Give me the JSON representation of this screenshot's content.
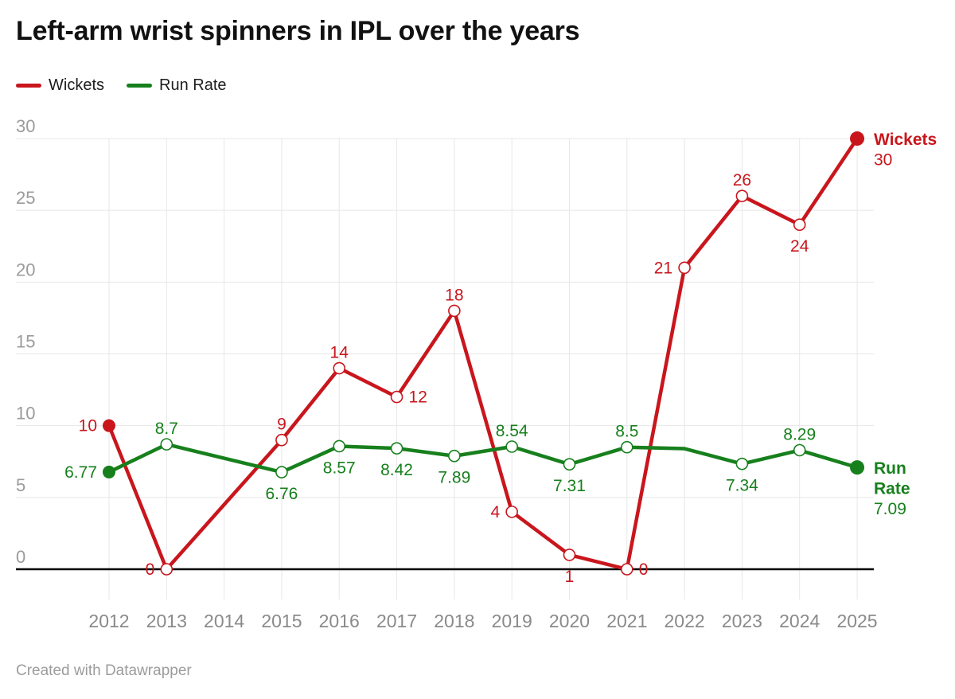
{
  "header": {
    "title": "Left-arm wrist spinners in IPL over the years"
  },
  "legend": {
    "position": "top",
    "items": [
      {
        "label": "Wickets",
        "color": "#c9161d"
      },
      {
        "label": "Run Rate",
        "color": "#17801d"
      }
    ]
  },
  "footer": {
    "text": "Created with Datawrapper"
  },
  "chart_data": {
    "type": "line",
    "title": "Left-arm wrist spinners in IPL over the years",
    "xlabel": "",
    "ylabel": "",
    "x": [
      "2012",
      "2013",
      "2014",
      "2015",
      "2016",
      "2017",
      "2018",
      "2019",
      "2020",
      "2021",
      "2022",
      "2023",
      "2024",
      "2025"
    ],
    "ylim": [
      0,
      30
    ],
    "yticks": [
      0,
      5,
      10,
      15,
      20,
      25,
      30
    ],
    "grid": true,
    "note_missing_year": "2014 has no data points; lines connect 2013 directly to 2015",
    "series": [
      {
        "name": "Wickets",
        "color": "#c9161d",
        "values": [
          10,
          0,
          null,
          9,
          14,
          12,
          18,
          4,
          1,
          0,
          21,
          26,
          24,
          30
        ],
        "labels": [
          "10",
          "0",
          null,
          "9",
          "14",
          "12",
          "18",
          "4",
          "1",
          "0",
          "21",
          "26",
          "24",
          null
        ],
        "label_pos": [
          "left",
          "left",
          null,
          "above",
          "above",
          "right",
          "above",
          "left",
          "below",
          "right",
          "left",
          "above",
          "below",
          null
        ],
        "marker_hidden": [],
        "end_label": {
          "bold_lines": [
            "Wickets"
          ],
          "value": "30"
        }
      },
      {
        "name": "Run Rate",
        "color": "#17801d",
        "values": [
          6.77,
          8.7,
          null,
          6.76,
          8.57,
          8.42,
          7.89,
          8.54,
          7.31,
          8.5,
          8.4,
          7.34,
          8.29,
          7.09
        ],
        "labels": [
          "6.77",
          "8.7",
          null,
          "6.76",
          "8.57",
          "8.42",
          "7.89",
          "8.54",
          "7.31",
          "8.5",
          null,
          "7.34",
          "8.29",
          null
        ],
        "label_pos": [
          "left",
          "above",
          null,
          "below",
          "below",
          "below",
          "below",
          "above",
          "below",
          "above",
          null,
          "below",
          "above",
          null
        ],
        "marker_hidden": [
          10
        ],
        "end_label": {
          "bold_lines": [
            "Run",
            "Rate"
          ],
          "value": "7.09"
        }
      }
    ]
  }
}
